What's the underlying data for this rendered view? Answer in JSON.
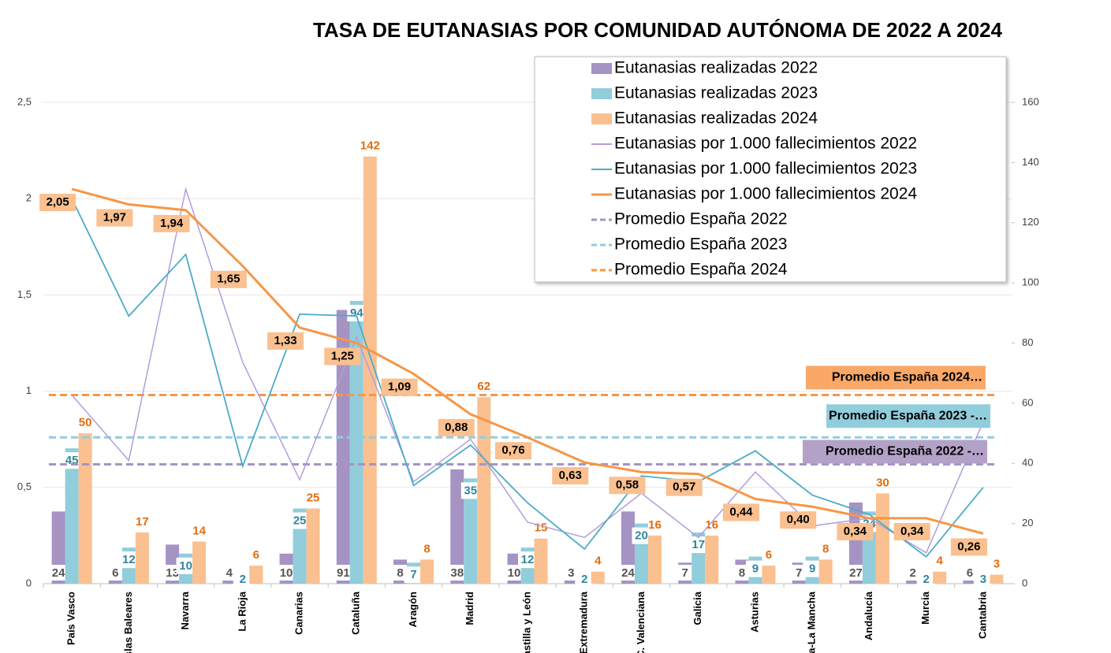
{
  "chart_data": {
    "type": "combo",
    "title": "TASA DE EUTANASIAS POR COMUNIDAD AUTÓNOMA DE 2022 A 2024",
    "categories": [
      "País Vasco",
      "Islas Baleares",
      "Navarra",
      "La Rioja",
      "Canarias",
      "Cataluña",
      "Aragón",
      "Madrid",
      "Castilla y León",
      "Extremadura",
      "C. Valenciana",
      "Galicia",
      "Asturias",
      "Castilla-La Mancha",
      "Andalucía",
      "Murcia",
      "Cantabria"
    ],
    "ylim": [
      0,
      2.5
    ],
    "yticks": [
      0,
      {
        "value": 0.5,
        "label": "0,5"
      },
      1,
      {
        "value": 1.5,
        "label": "1,5"
      },
      2,
      {
        "value": 2.5,
        "label": "2,5"
      }
    ],
    "y2lim": [
      0,
      160
    ],
    "y2ticks": [
      0,
      20,
      40,
      60,
      80,
      100,
      120,
      140,
      160
    ],
    "grid": true,
    "legend": "top-right",
    "series": [
      {
        "name": "Eutanasias realizadas 2022",
        "type": "bar",
        "axis": "y2",
        "color": "#a593c4",
        "label_color": "#555555",
        "values": [
          24,
          6,
          13,
          4,
          10,
          91,
          8,
          38,
          10,
          3,
          24,
          7,
          8,
          7,
          27,
          2,
          6
        ]
      },
      {
        "name": "Eutanasias realizadas 2023",
        "type": "bar",
        "axis": "y2",
        "color": "#92cddc",
        "label_color": "#31859c",
        "values": [
          45,
          12,
          10,
          2,
          25,
          94,
          7,
          35,
          12,
          2,
          20,
          17,
          9,
          9,
          24,
          2,
          3
        ]
      },
      {
        "name": "Eutanasias realizadas 2024",
        "type": "bar",
        "axis": "y2",
        "color": "#fac090",
        "label_color": "#e46c0a",
        "values": [
          50,
          17,
          14,
          6,
          25,
          142,
          8,
          62,
          15,
          4,
          16,
          16,
          6,
          8,
          30,
          4,
          3
        ]
      },
      {
        "name": "Eutanasias por 1.000 fallecimientos 2022",
        "type": "line",
        "axis": "y",
        "color": "#b39ddb",
        "values": [
          0.98,
          0.64,
          2.05,
          1.15,
          0.54,
          1.28,
          0.53,
          0.75,
          0.32,
          0.24,
          0.47,
          0.24,
          0.58,
          0.3,
          0.34,
          0.16,
          0.84
        ]
      },
      {
        "name": "Eutanasias por 1.000 fallecimientos 2023",
        "type": "line",
        "axis": "y",
        "color": "#4bacc6",
        "values": [
          2.0,
          1.39,
          1.71,
          0.61,
          1.4,
          1.39,
          0.51,
          0.72,
          0.42,
          0.18,
          0.56,
          0.53,
          0.69,
          0.46,
          0.36,
          0.14,
          0.5
        ]
      },
      {
        "name": "Eutanasias por 1.000 fallecimientos 2024",
        "type": "line",
        "axis": "y",
        "color": "#f79646",
        "values": [
          2.05,
          1.97,
          1.94,
          1.65,
          1.33,
          1.25,
          1.09,
          0.88,
          0.76,
          0.63,
          0.58,
          0.57,
          0.44,
          0.4,
          0.34,
          0.34,
          0.26
        ],
        "value_labels": [
          "2,05",
          "1,97",
          "1,94",
          "1,65",
          "1,33",
          "1,25",
          "1,09",
          "0,88",
          "0,76",
          "0,63",
          "0,58",
          "0,57",
          "0,44",
          "0,40",
          "0,34",
          "0,34",
          "0,26"
        ]
      }
    ],
    "reference_lines": [
      {
        "name": "Promedio España 2022",
        "label": "Promedio España 2022 -…",
        "value": 0.62,
        "color": "#a593c4",
        "box_color": "#b3a2c7"
      },
      {
        "name": "Promedio España 2023",
        "label": "Promedio España 2023 -…",
        "value": 0.76,
        "color": "#92cddc",
        "box_color": "#92cddc"
      },
      {
        "name": "Promedio España 2024",
        "label": "Promedio España 2024…",
        "value": 0.98,
        "color": "#f79646",
        "box_color": "#f9a868"
      }
    ]
  }
}
